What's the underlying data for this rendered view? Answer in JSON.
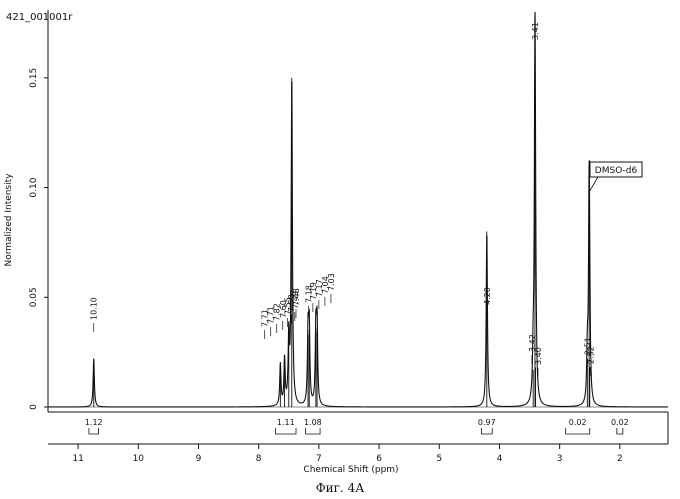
{
  "chart_data": {
    "type": "line",
    "title": "421_001001r",
    "xlabel": "Chemical Shift (ppm)",
    "ylabel": "Normalized Intensity",
    "xlim": [
      11.5,
      1.2
    ],
    "ylim": [
      0,
      0.18
    ],
    "x_ticks": [
      "11",
      "10",
      "9",
      "8",
      "7",
      "6",
      "5",
      "4",
      "3",
      "2"
    ],
    "y_ticks": [
      "0",
      "0.05",
      "0.10",
      "0.15"
    ],
    "peaks": [
      {
        "x": 10.74,
        "y": 0.022
      },
      {
        "x": 7.64,
        "y": 0.019
      },
      {
        "x": 7.57,
        "y": 0.021
      },
      {
        "x": 7.5,
        "y": 0.03
      },
      {
        "x": 7.45,
        "y": 0.15
      },
      {
        "x": 7.18,
        "y": 0.033
      },
      {
        "x": 7.16,
        "y": 0.035
      },
      {
        "x": 7.05,
        "y": 0.034
      },
      {
        "x": 7.03,
        "y": 0.036
      },
      {
        "x": 4.21,
        "y": 0.08
      },
      {
        "x": 3.44,
        "y": 0.017
      },
      {
        "x": 3.41,
        "y": 0.17
      },
      {
        "x": 3.4,
        "y": 0.018
      },
      {
        "x": 2.54,
        "y": 0.022
      },
      {
        "x": 2.51,
        "y": 0.1
      },
      {
        "x": 2.5,
        "y": 0.018
      }
    ],
    "peak_labels": [
      {
        "text": "10.10",
        "x": 10.74
      },
      {
        "text": "7.71",
        "x": 7.9
      },
      {
        "text": "7.71",
        "x": 7.8
      },
      {
        "text": "7.82",
        "x": 7.7
      },
      {
        "text": "7.60",
        "x": 7.6
      },
      {
        "text": "7.55",
        "x": 7.52
      },
      {
        "text": "7.50",
        "x": 7.46
      },
      {
        "text": "7.49",
        "x": 7.4
      },
      {
        "text": "7.48",
        "x": 7.38
      },
      {
        "text": "7.18",
        "x": 7.17
      },
      {
        "text": "7.19",
        "x": 7.1
      },
      {
        "text": "7.17",
        "x": 7.0
      },
      {
        "text": "7.04",
        "x": 6.9
      },
      {
        "text": "7.03",
        "x": 6.8
      },
      {
        "text": "4.20",
        "x": 4.21
      },
      {
        "text": "3.42",
        "x": 3.46
      },
      {
        "text": "3.41",
        "x": 3.41
      },
      {
        "text": "3.40",
        "x": 3.36
      },
      {
        "text": "2.51",
        "x": 2.54
      },
      {
        "text": "2.52",
        "x": 2.49
      }
    ],
    "integrations": [
      {
        "value": "1.12",
        "x_from": 10.82,
        "x_to": 10.66
      },
      {
        "value": "1.11",
        "x_from": 7.72,
        "x_to": 7.38
      },
      {
        "value": "1.08",
        "x_from": 7.22,
        "x_to": 6.98
      },
      {
        "value": "0.97",
        "x_from": 4.3,
        "x_to": 4.12
      },
      {
        "value": "0.02",
        "x_from": 2.9,
        "x_to": 2.5
      },
      {
        "value": "0.02",
        "x_from": 2.05,
        "x_to": 1.95
      }
    ],
    "annotations": [
      {
        "text": "DMSO-d6",
        "x": 2.51
      }
    ],
    "grid": false
  },
  "caption": "Фиг. 4А"
}
